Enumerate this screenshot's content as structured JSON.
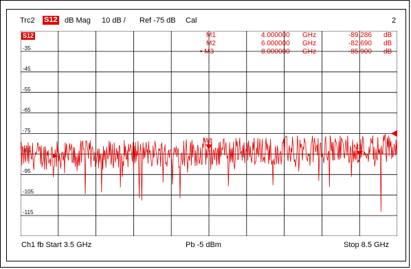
{
  "header": {
    "trace": "Trc2",
    "param": "S12",
    "format": "dB Mag",
    "scale": "10 dB /",
    "ref": "Ref -75 dB",
    "cal": "Cal",
    "channel_index": "2"
  },
  "trace_badge": "S12",
  "y_ticks": [
    "-35",
    "-45",
    "-55",
    "-65",
    "-75",
    "-85",
    "-95",
    "-105",
    "-115"
  ],
  "markers_table": {
    "rows": [
      {
        "name": "M1",
        "freq": "4.000000",
        "unit": "GHz",
        "value": "-89.286",
        "vunit": "dB"
      },
      {
        "name": "M2",
        "freq": "6.000000",
        "unit": "GHz",
        "value": "-82.690",
        "vunit": "dB"
      },
      {
        "name": "• M3",
        "freq": "8.000000",
        "unit": "GHz",
        "value": "-85.900",
        "vunit": "dB"
      }
    ]
  },
  "marker_labels": {
    "m2": "M2",
    "m3": "M3"
  },
  "footer": {
    "left": "Ch1  fb  Start  3.5 GHz",
    "center": "Pb  -5 dBm",
    "right": "Stop  8.5 GHz"
  },
  "colors": {
    "trace": "#e00000",
    "grid": "#000000",
    "badge": "#e00000"
  },
  "chart_data": {
    "type": "line",
    "title": "",
    "xlabel": "",
    "ylabel": "",
    "xlim_ghz": [
      3.5,
      8.5
    ],
    "ylim_db": [
      -125,
      -25
    ],
    "ref_level_db": -75,
    "grid": true,
    "markers": [
      {
        "name": "M1",
        "x": 4.0,
        "y": -89.286
      },
      {
        "name": "M2",
        "x": 6.0,
        "y": -82.69
      },
      {
        "name": "M3",
        "x": 8.0,
        "y": -85.9
      }
    ]
  }
}
